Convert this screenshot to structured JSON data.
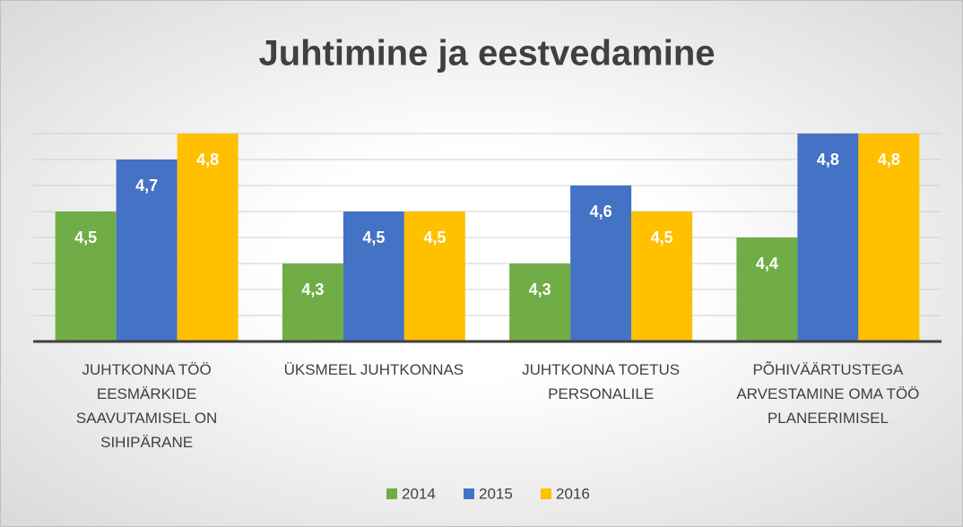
{
  "chart_data": {
    "type": "bar",
    "title": "Juhtimine ja eestvedamine",
    "categories": [
      "JUHTKONNA TÖÖ EESMÄRKIDE SAAVUTAMISEL ON SIHIPÄRANE",
      "ÜKSMEEL JUHTKONNAS",
      "JUHTKONNA TOETUS PERSONALILE",
      "PÕHIVÄÄRTUSTEGA ARVESTAMINE OMA TÖÖ PLANEERIMISEL"
    ],
    "series": [
      {
        "name": "2014",
        "color": "#70ad47",
        "values": [
          4.5,
          4.3,
          4.3,
          4.4
        ],
        "value_labels": [
          "4,5",
          "4,3",
          "4,3",
          "4,4"
        ]
      },
      {
        "name": "2015",
        "color": "#4472c4",
        "values": [
          4.7,
          4.5,
          4.6,
          4.8
        ],
        "value_labels": [
          "4,7",
          "4,5",
          "4,6",
          "4,8"
        ]
      },
      {
        "name": "2016",
        "color": "#ffc000",
        "values": [
          4.8,
          4.5,
          4.5,
          4.8
        ],
        "value_labels": [
          "4,8",
          "4,5",
          "4,5",
          "4,8"
        ]
      }
    ],
    "ylim": [
      4.0,
      4.8
    ],
    "yticks": [
      4.0,
      4.1,
      4.2,
      4.3,
      4.4,
      4.5,
      4.6,
      4.7,
      4.8
    ],
    "grid": true,
    "legend": "bottom"
  }
}
